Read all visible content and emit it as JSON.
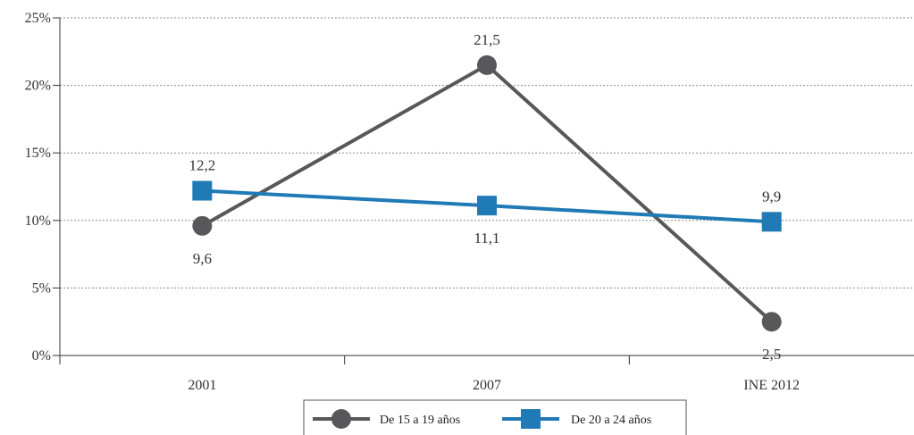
{
  "chart_data": {
    "type": "line",
    "title": "",
    "xlabel": "",
    "ylabel": "",
    "categories": [
      "2001",
      "2007",
      "INE 2012"
    ],
    "y_ticks": [
      "0%",
      "5%",
      "10%",
      "15%",
      "20%",
      "25%"
    ],
    "ylim": [
      0,
      25
    ],
    "grid": true,
    "legend_position": "bottom",
    "series": [
      {
        "name": "De 15 a 19 años",
        "values": [
          9.6,
          21.5,
          2.5
        ],
        "labels": [
          "9,6",
          "21,5",
          "2,5"
        ],
        "marker": "circle",
        "color": "#58585a"
      },
      {
        "name": "De 20 a 24 años",
        "values": [
          12.2,
          11.1,
          9.9
        ],
        "labels": [
          "12,2",
          "11,1",
          "9,9"
        ],
        "marker": "square",
        "color": "#1f7ab5"
      }
    ]
  }
}
